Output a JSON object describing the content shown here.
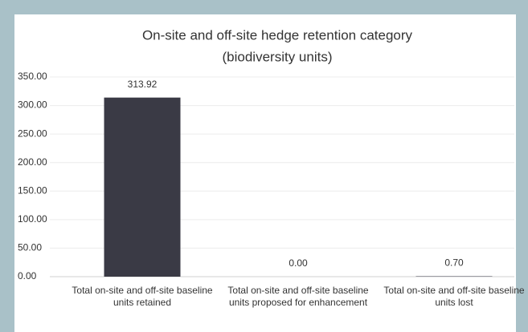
{
  "chart_data": {
    "type": "bar",
    "title": "On-site and off-site hedge retention category",
    "subtitle": "(biodiversity units)",
    "categories": [
      "Total on-site and off-site baseline units retained",
      "Total on-site and off-site baseline units proposed for enhancement",
      "Total on-site and off-site baseline units lost"
    ],
    "values": [
      313.92,
      0,
      0.7
    ],
    "value_labels": [
      "313.92",
      "0.00",
      "0.70"
    ],
    "color": "#3a3a45",
    "ylim": [
      0,
      350
    ],
    "yticks": [
      {
        "value": 0,
        "label": "0.00"
      },
      {
        "value": 50,
        "label": "50.00"
      },
      {
        "value": 100,
        "label": "100.00"
      },
      {
        "value": 150,
        "label": "150.00"
      },
      {
        "value": 200,
        "label": "200.00"
      },
      {
        "value": 250,
        "label": "250.00"
      },
      {
        "value": 300,
        "label": "300.00"
      },
      {
        "value": 350,
        "label": "350.00"
      }
    ],
    "grid": true
  }
}
